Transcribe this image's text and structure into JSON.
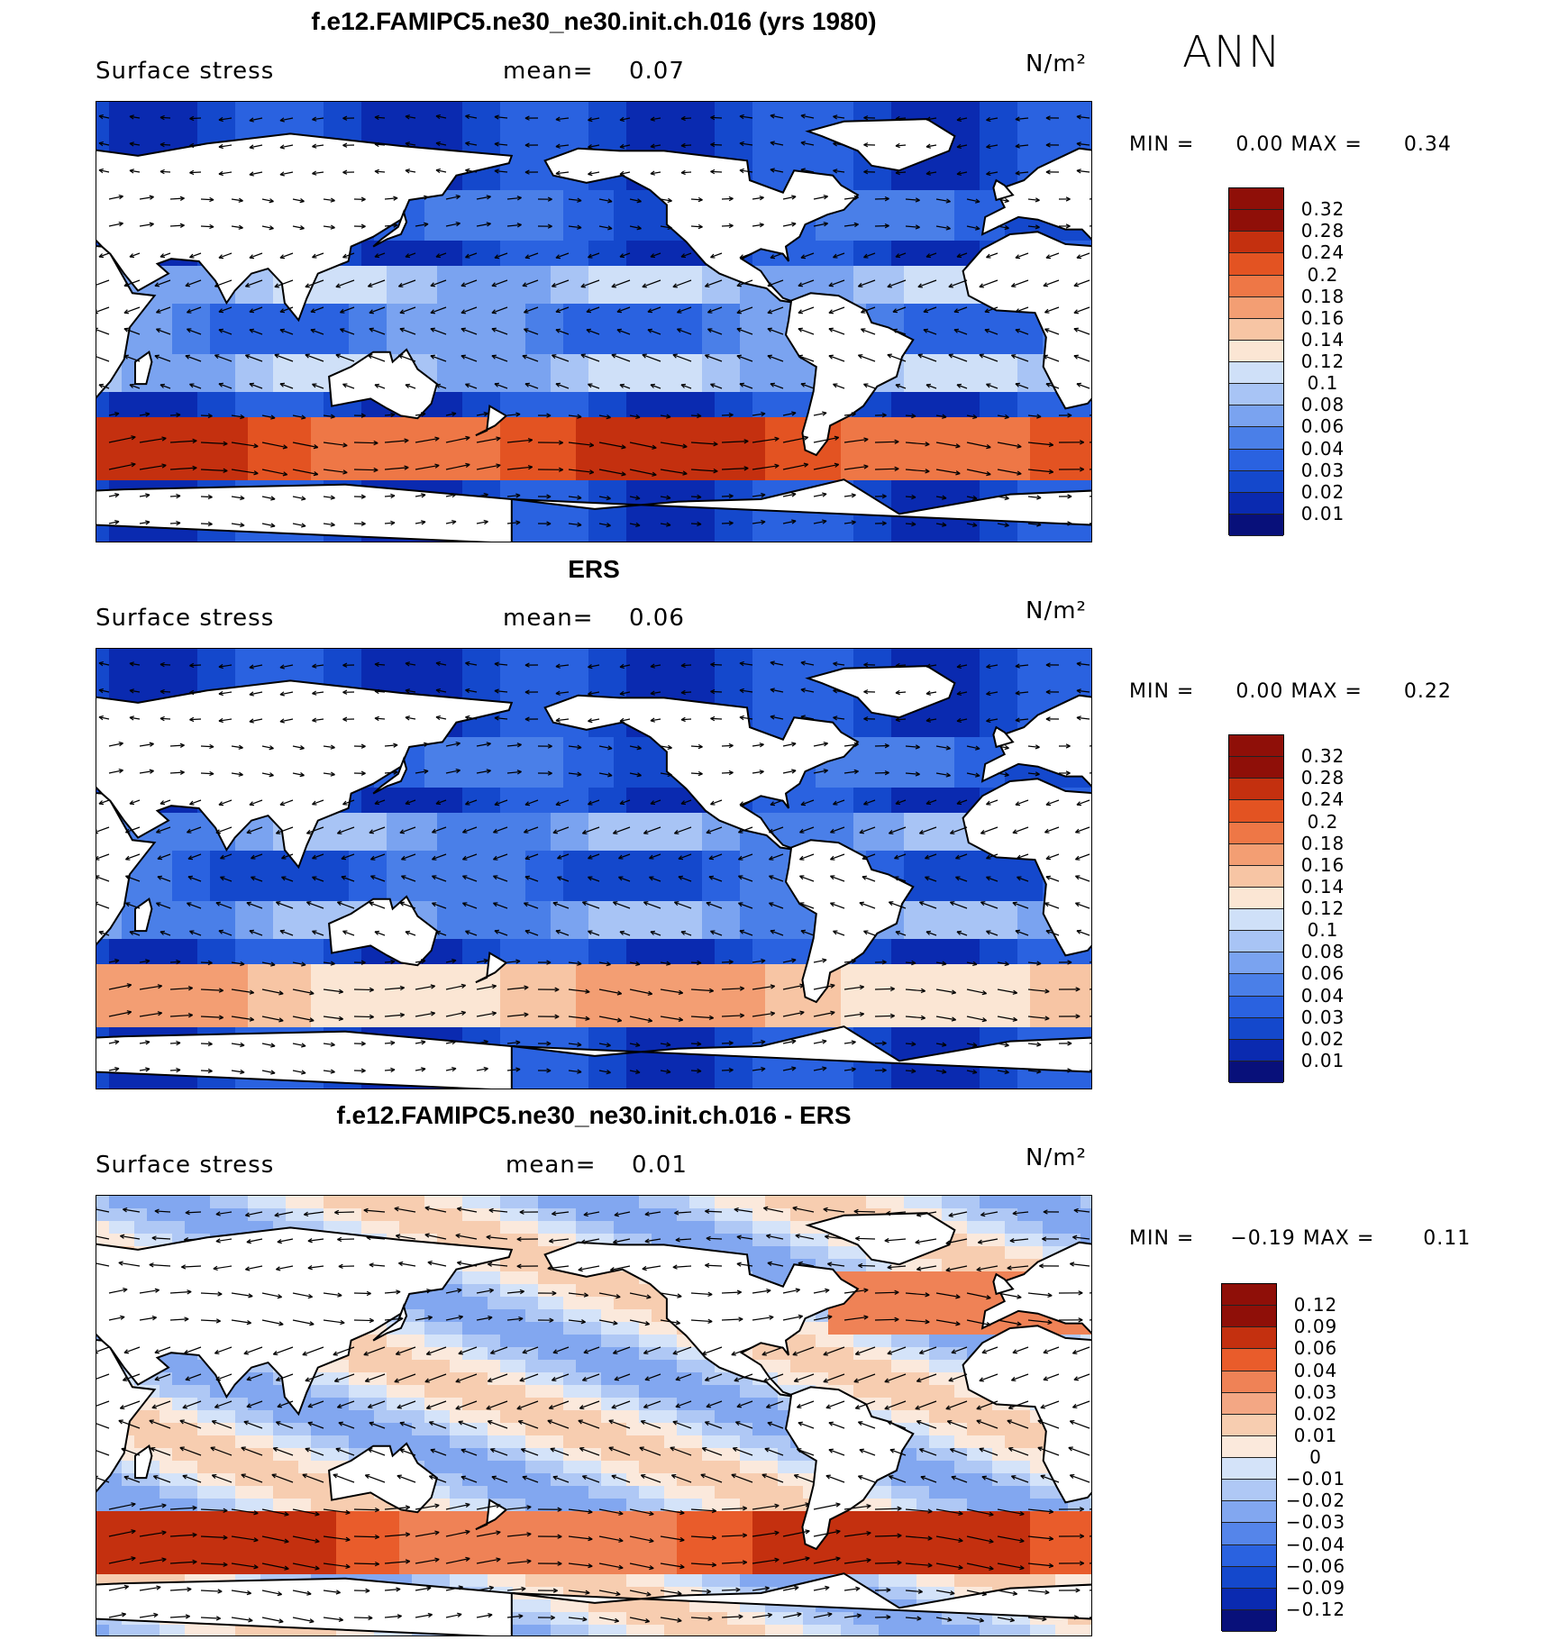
{
  "season": "ANN",
  "colors": {
    "speed": [
      "#08107a",
      "#0a2ab0",
      "#1448cc",
      "#2a62e0",
      "#4a7fe8",
      "#7aa3f0",
      "#a8c4f5",
      "#cfe0f8",
      "#fbe6d4",
      "#f7c5a4",
      "#f39e73",
      "#ee7746",
      "#e35322",
      "#c4300f",
      "#8f0f08"
    ],
    "diff": [
      "#08107a",
      "#0a2ab0",
      "#1448cc",
      "#2a62e0",
      "#5585ea",
      "#82a7f0",
      "#afc8f5",
      "#d4e3f9",
      "#fbe9dc",
      "#f7cdb0",
      "#f3a784",
      "#ef8256",
      "#e95c2b",
      "#c4300f",
      "#8f0f08"
    ]
  },
  "panels": [
    {
      "title": "f.e12.FAMIPC5.ne30_ne30.init.ch.016 (yrs 1980)",
      "variable": "Surface stress",
      "mean_label": "mean=",
      "mean_value": "0.07",
      "units": "N/m²",
      "min_label": "MIN =",
      "min_value": "0.00",
      "max_label": "MAX =",
      "max_value": "0.34",
      "colorbar_labels": [
        "0.32",
        "0.28",
        "0.24",
        "0.2",
        "0.18",
        "0.16",
        "0.14",
        "0.12",
        "0.1",
        "0.08",
        "0.06",
        "0.04",
        "0.03",
        "0.02",
        "0.01"
      ]
    },
    {
      "title": "ERS",
      "variable": "Surface stress",
      "mean_label": "mean=",
      "mean_value": "0.06",
      "units": "N/m²",
      "min_label": "MIN =",
      "min_value": "0.00",
      "max_label": "MAX =",
      "max_value": "0.22",
      "colorbar_labels": [
        "0.32",
        "0.28",
        "0.24",
        "0.2",
        "0.18",
        "0.16",
        "0.14",
        "0.12",
        "0.1",
        "0.08",
        "0.06",
        "0.04",
        "0.03",
        "0.02",
        "0.01"
      ]
    },
    {
      "title": "f.e12.FAMIPC5.ne30_ne30.init.ch.016 - ERS",
      "variable": "Surface stress",
      "mean_label": "mean=",
      "mean_value": "0.01",
      "units": "N/m²",
      "min_label": "MIN =",
      "min_value": "−0.19",
      "max_label": "MAX =",
      "max_value": "0.11",
      "colorbar_labels": [
        "0.12",
        "0.09",
        "0.06",
        "0.04",
        "0.03",
        "0.02",
        "0.01",
        "0",
        "−0.01",
        "−0.02",
        "−0.03",
        "−0.04",
        "−0.06",
        "−0.09",
        "−0.12"
      ]
    }
  ]
}
